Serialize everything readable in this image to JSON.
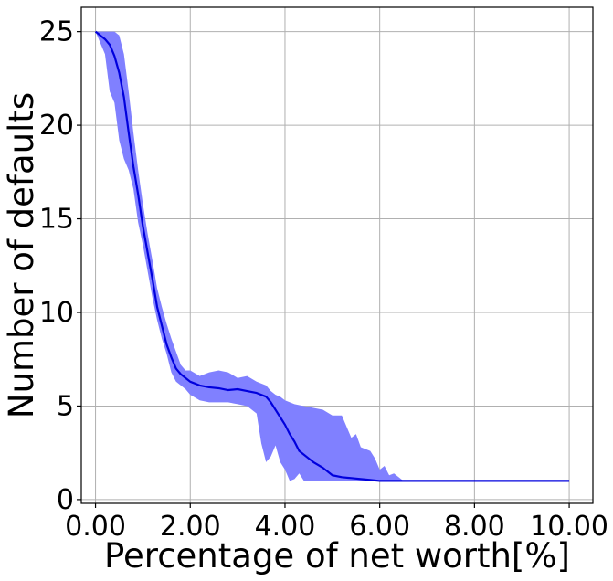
{
  "chart_data": {
    "type": "area",
    "xlabel": "Percentage of net worth[%]",
    "ylabel": "Number of defaults",
    "xlim": [
      -0.3,
      10.5
    ],
    "ylim": [
      -0.2,
      26.3
    ],
    "x_ticks": [
      0,
      2,
      4,
      6,
      8,
      10
    ],
    "x_tick_labels": [
      "0.00",
      "2.00",
      "4.00",
      "6.00",
      "8.00",
      "10.00"
    ],
    "y_ticks": [
      0,
      5,
      10,
      15,
      20,
      25
    ],
    "y_tick_labels": [
      "0",
      "5",
      "10",
      "15",
      "20",
      "25"
    ],
    "grid": true,
    "line_color": "#0000dd",
    "band_color": "#8080ff",
    "series": [
      {
        "kind": "mean-line",
        "points": [
          [
            0,
            25
          ],
          [
            0.2,
            24.6
          ],
          [
            0.3,
            24.3
          ],
          [
            0.4,
            23.7
          ],
          [
            0.5,
            22.8
          ],
          [
            0.6,
            21.5
          ],
          [
            0.7,
            19.6
          ],
          [
            0.8,
            17.8
          ],
          [
            0.9,
            16.3
          ],
          [
            1.0,
            14.6
          ],
          [
            1.1,
            13.2
          ],
          [
            1.2,
            11.8
          ],
          [
            1.3,
            10.3
          ],
          [
            1.4,
            9.3
          ],
          [
            1.5,
            8.3
          ],
          [
            1.6,
            7.6
          ],
          [
            1.7,
            7.0
          ],
          [
            1.8,
            6.7
          ],
          [
            1.9,
            6.5
          ],
          [
            2.0,
            6.3
          ],
          [
            2.2,
            6.1
          ],
          [
            2.4,
            6.0
          ],
          [
            2.6,
            5.95
          ],
          [
            2.8,
            5.85
          ],
          [
            3.0,
            5.9
          ],
          [
            3.2,
            5.8
          ],
          [
            3.4,
            5.7
          ],
          [
            3.6,
            5.5
          ],
          [
            3.7,
            5.2
          ],
          [
            3.8,
            4.8
          ],
          [
            3.9,
            4.4
          ],
          [
            4.0,
            4.0
          ],
          [
            4.1,
            3.5
          ],
          [
            4.2,
            3.1
          ],
          [
            4.3,
            2.6
          ],
          [
            4.5,
            2.2
          ],
          [
            4.6,
            2.0
          ],
          [
            4.8,
            1.7
          ],
          [
            5.0,
            1.3
          ],
          [
            5.2,
            1.2
          ],
          [
            5.4,
            1.15
          ],
          [
            5.6,
            1.1
          ],
          [
            5.8,
            1.05
          ],
          [
            6.0,
            1.0
          ],
          [
            7.0,
            1.0
          ],
          [
            8.0,
            1.0
          ],
          [
            9.0,
            1.0
          ],
          [
            10.0,
            1.0
          ]
        ]
      },
      {
        "kind": "band-upper",
        "points": [
          [
            0,
            25
          ],
          [
            0.2,
            25
          ],
          [
            0.3,
            25
          ],
          [
            0.4,
            25
          ],
          [
            0.5,
            24.8
          ],
          [
            0.6,
            23.8
          ],
          [
            0.7,
            21.8
          ],
          [
            0.8,
            19.6
          ],
          [
            0.9,
            17.6
          ],
          [
            1.0,
            15.8
          ],
          [
            1.1,
            14.2
          ],
          [
            1.2,
            12.8
          ],
          [
            1.3,
            11.3
          ],
          [
            1.4,
            10.3
          ],
          [
            1.5,
            9.4
          ],
          [
            1.6,
            8.6
          ],
          [
            1.7,
            7.9
          ],
          [
            1.8,
            7.2
          ],
          [
            1.9,
            6.9
          ],
          [
            2.0,
            6.9
          ],
          [
            2.2,
            6.6
          ],
          [
            2.4,
            6.8
          ],
          [
            2.6,
            6.9
          ],
          [
            2.8,
            6.8
          ],
          [
            3.0,
            6.5
          ],
          [
            3.2,
            6.6
          ],
          [
            3.4,
            6.3
          ],
          [
            3.6,
            6.1
          ],
          [
            3.7,
            5.8
          ],
          [
            3.8,
            5.6
          ],
          [
            3.9,
            5.5
          ],
          [
            4.0,
            5.3
          ],
          [
            4.2,
            5.1
          ],
          [
            4.4,
            5.0
          ],
          [
            4.6,
            4.9
          ],
          [
            4.8,
            4.8
          ],
          [
            5.0,
            4.5
          ],
          [
            5.2,
            4.5
          ],
          [
            5.4,
            3.3
          ],
          [
            5.5,
            3.5
          ],
          [
            5.6,
            2.8
          ],
          [
            5.8,
            2.6
          ],
          [
            5.9,
            2.2
          ],
          [
            6.0,
            1.6
          ],
          [
            6.1,
            1.8
          ],
          [
            6.2,
            1.3
          ],
          [
            6.3,
            1.4
          ],
          [
            6.5,
            1.0
          ],
          [
            10.0,
            1.0
          ]
        ]
      },
      {
        "kind": "band-lower",
        "points": [
          [
            0,
            25
          ],
          [
            0.2,
            23.8
          ],
          [
            0.3,
            21.8
          ],
          [
            0.4,
            21.2
          ],
          [
            0.5,
            19.2
          ],
          [
            0.6,
            18.2
          ],
          [
            0.7,
            17.6
          ],
          [
            0.8,
            16.6
          ],
          [
            0.9,
            14.8
          ],
          [
            1.0,
            13.6
          ],
          [
            1.1,
            12.2
          ],
          [
            1.2,
            10.8
          ],
          [
            1.3,
            9.6
          ],
          [
            1.4,
            8.6
          ],
          [
            1.5,
            7.8
          ],
          [
            1.6,
            6.8
          ],
          [
            1.7,
            6.3
          ],
          [
            1.8,
            6.1
          ],
          [
            1.9,
            5.9
          ],
          [
            2.0,
            5.6
          ],
          [
            2.2,
            5.3
          ],
          [
            2.4,
            5.2
          ],
          [
            2.6,
            5.2
          ],
          [
            2.8,
            5.2
          ],
          [
            3.0,
            5.1
          ],
          [
            3.2,
            5.0
          ],
          [
            3.4,
            4.6
          ],
          [
            3.5,
            3.0
          ],
          [
            3.6,
            2.0
          ],
          [
            3.7,
            2.3
          ],
          [
            3.8,
            2.9
          ],
          [
            3.9,
            2.0
          ],
          [
            4.0,
            1.6
          ],
          [
            4.1,
            1.0
          ],
          [
            4.2,
            1.1
          ],
          [
            4.3,
            1.4
          ],
          [
            4.4,
            1.0
          ],
          [
            10.0,
            1.0
          ]
        ]
      }
    ]
  }
}
